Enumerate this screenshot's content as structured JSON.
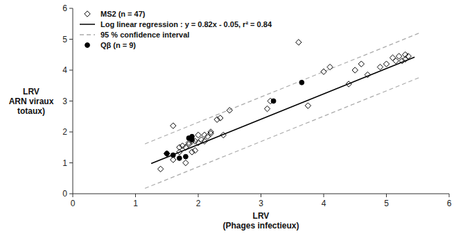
{
  "chart_data": {
    "type": "scatter",
    "xlabel": "LRV\n(Phages infectieux)",
    "ylabel": "LRV\nARN viraux\ntotaux)",
    "xlim": [
      0,
      6
    ],
    "ylim": [
      0,
      6
    ],
    "xticks": [
      0,
      1,
      2,
      3,
      4,
      5,
      6
    ],
    "yticks": [
      0,
      1,
      2,
      3,
      4,
      5,
      6
    ],
    "grid": false,
    "legend": "upper left",
    "series": [
      {
        "name": "MS2 (n = 47)",
        "type": "scatter",
        "marker": "open-diamond",
        "color": "#000000",
        "x": [
          1.4,
          1.5,
          1.5,
          1.6,
          1.6,
          1.7,
          1.7,
          1.75,
          1.8,
          1.8,
          1.85,
          1.85,
          1.9,
          1.9,
          1.95,
          1.95,
          2.0,
          2.0,
          2.05,
          2.1,
          2.1,
          2.15,
          2.2,
          2.2,
          2.3,
          2.35,
          2.4,
          2.5,
          3.1,
          3.15,
          3.6,
          3.75,
          4.0,
          4.1,
          4.4,
          4.5,
          4.6,
          4.7,
          4.9,
          5.0,
          5.1,
          5.15,
          5.2,
          5.25,
          5.3,
          5.3,
          5.35
        ],
        "values": [
          0.8,
          1.3,
          1.3,
          1.1,
          2.2,
          1.35,
          1.5,
          1.55,
          1.0,
          1.5,
          1.6,
          1.65,
          1.35,
          1.7,
          1.4,
          1.7,
          1.65,
          1.9,
          1.75,
          1.7,
          1.9,
          1.85,
          1.95,
          2.0,
          2.4,
          2.45,
          1.9,
          2.7,
          2.75,
          3.0,
          4.9,
          2.85,
          3.95,
          4.1,
          3.55,
          4.0,
          4.2,
          3.85,
          4.1,
          4.2,
          4.4,
          4.3,
          4.45,
          4.3,
          4.35,
          4.5,
          4.45
        ]
      },
      {
        "name": "Log linear regression : y = 0.82x - 0.05, r² = 0.84",
        "type": "line",
        "line_style": "solid",
        "color": "#000000",
        "x": [
          1.25,
          5.45
        ],
        "values": [
          0.975,
          4.419
        ]
      },
      {
        "name": "95 % confidence interval",
        "type": "line",
        "line_style": "dashed",
        "color": "#aaaaaa",
        "x": [
          1.15,
          5.55
        ],
        "values": [
          1.613,
          5.221
        ],
        "lower": [
          0.173,
          3.781
        ]
      },
      {
        "name": "Qβ (n = 9)",
        "type": "scatter",
        "marker": "circle",
        "color": "#000000",
        "x": [
          1.5,
          1.6,
          1.7,
          1.8,
          1.85,
          1.9,
          1.9,
          3.2,
          3.65
        ],
        "values": [
          1.3,
          1.25,
          1.15,
          1.2,
          1.8,
          1.75,
          1.85,
          3.0,
          3.6
        ]
      }
    ]
  }
}
